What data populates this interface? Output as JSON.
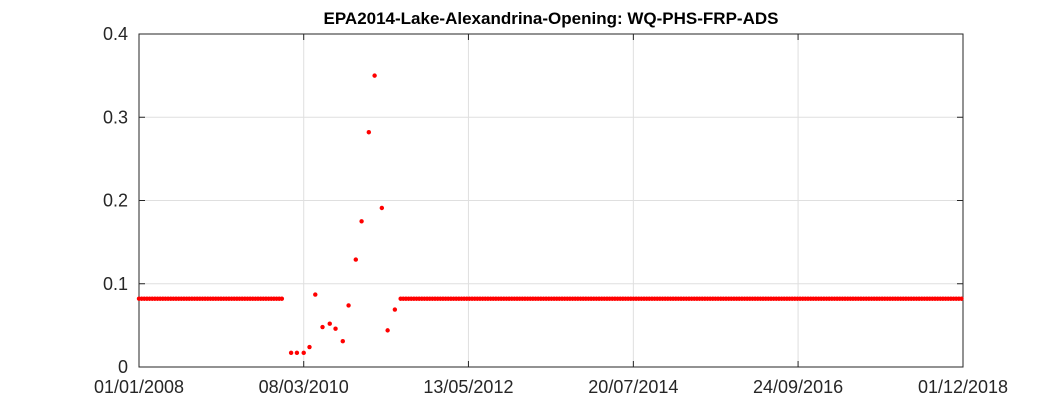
{
  "chart_data": {
    "type": "scatter",
    "title": "EPA2014-Lake-Alexandrina-Opening: WQ-PHS-FRP-ADS",
    "xlabel": "",
    "ylabel": "",
    "x_axis": {
      "type": "date",
      "range": [
        "2008-01-01",
        "2018-12-01"
      ],
      "ticks": [
        "2008-01-01",
        "2010-03-08",
        "2012-05-13",
        "2014-07-20",
        "2016-09-24",
        "2018-12-01"
      ],
      "tick_labels": [
        "01/01/2008",
        "08/03/2010",
        "13/05/2012",
        "20/07/2014",
        "24/09/2016",
        "01/12/2018"
      ]
    },
    "y_axis": {
      "range": [
        0,
        0.4
      ],
      "ticks": [
        0,
        0.1,
        0.2,
        0.3,
        0.4
      ],
      "tick_labels": [
        "0",
        "0.1",
        "0.2",
        "0.3",
        "0.4"
      ]
    },
    "grid": true,
    "marker_color": "#ff0000",
    "series": [
      {
        "points": [
          {
            "x": "2010-01-06",
            "y": 0.017
          },
          {
            "x": "2010-02-03",
            "y": 0.017
          },
          {
            "x": "2010-03-08",
            "y": 0.017
          },
          {
            "x": "2010-04-05",
            "y": 0.024
          },
          {
            "x": "2010-05-03",
            "y": 0.087
          },
          {
            "x": "2010-06-07",
            "y": 0.048
          },
          {
            "x": "2010-07-12",
            "y": 0.052
          },
          {
            "x": "2010-08-09",
            "y": 0.046
          },
          {
            "x": "2010-09-13",
            "y": 0.031
          },
          {
            "x": "2010-10-11",
            "y": 0.074
          },
          {
            "x": "2010-11-15",
            "y": 0.129
          },
          {
            "x": "2010-12-13",
            "y": 0.175
          },
          {
            "x": "2011-01-17",
            "y": 0.282
          },
          {
            "x": "2011-02-14",
            "y": 0.35
          },
          {
            "x": "2011-03-21",
            "y": 0.191
          },
          {
            "x": "2011-04-18",
            "y": 0.044
          },
          {
            "x": "2011-05-23",
            "y": 0.069
          }
        ]
      }
    ],
    "constant_fill_series": [
      {
        "y": 0.082,
        "start": "2008-01-01",
        "end": "2009-12-01",
        "interval_days": 12.8
      },
      {
        "y": 0.082,
        "start": "2011-06-20",
        "end": "2018-12-01",
        "interval_days": 12.8
      }
    ]
  }
}
